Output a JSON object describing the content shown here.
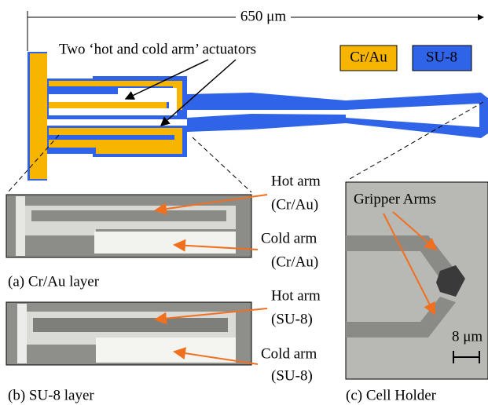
{
  "dimension": {
    "label": "650 μm"
  },
  "legend": [
    {
      "label": "Cr/Au"
    },
    {
      "label": "SU-8"
    }
  ],
  "top": {
    "annotation": "Two ‘hot and cold arm’ actuators"
  },
  "panels": [
    {
      "caption": "(a) Cr/Au layer",
      "labels": [
        [
          "Hot arm",
          "(Cr/Au)"
        ],
        [
          "Cold arm",
          "(Cr/Au)"
        ]
      ]
    },
    {
      "caption": "(b) SU-8 layer",
      "labels": [
        [
          "Hot arm",
          "(SU-8)"
        ],
        [
          "Cold arm",
          "(SU-8)"
        ]
      ]
    },
    {
      "caption": "(c) Cell Holder",
      "labels": [
        [
          "Gripper Arms"
        ]
      ],
      "scale": "8 μm"
    }
  ]
}
